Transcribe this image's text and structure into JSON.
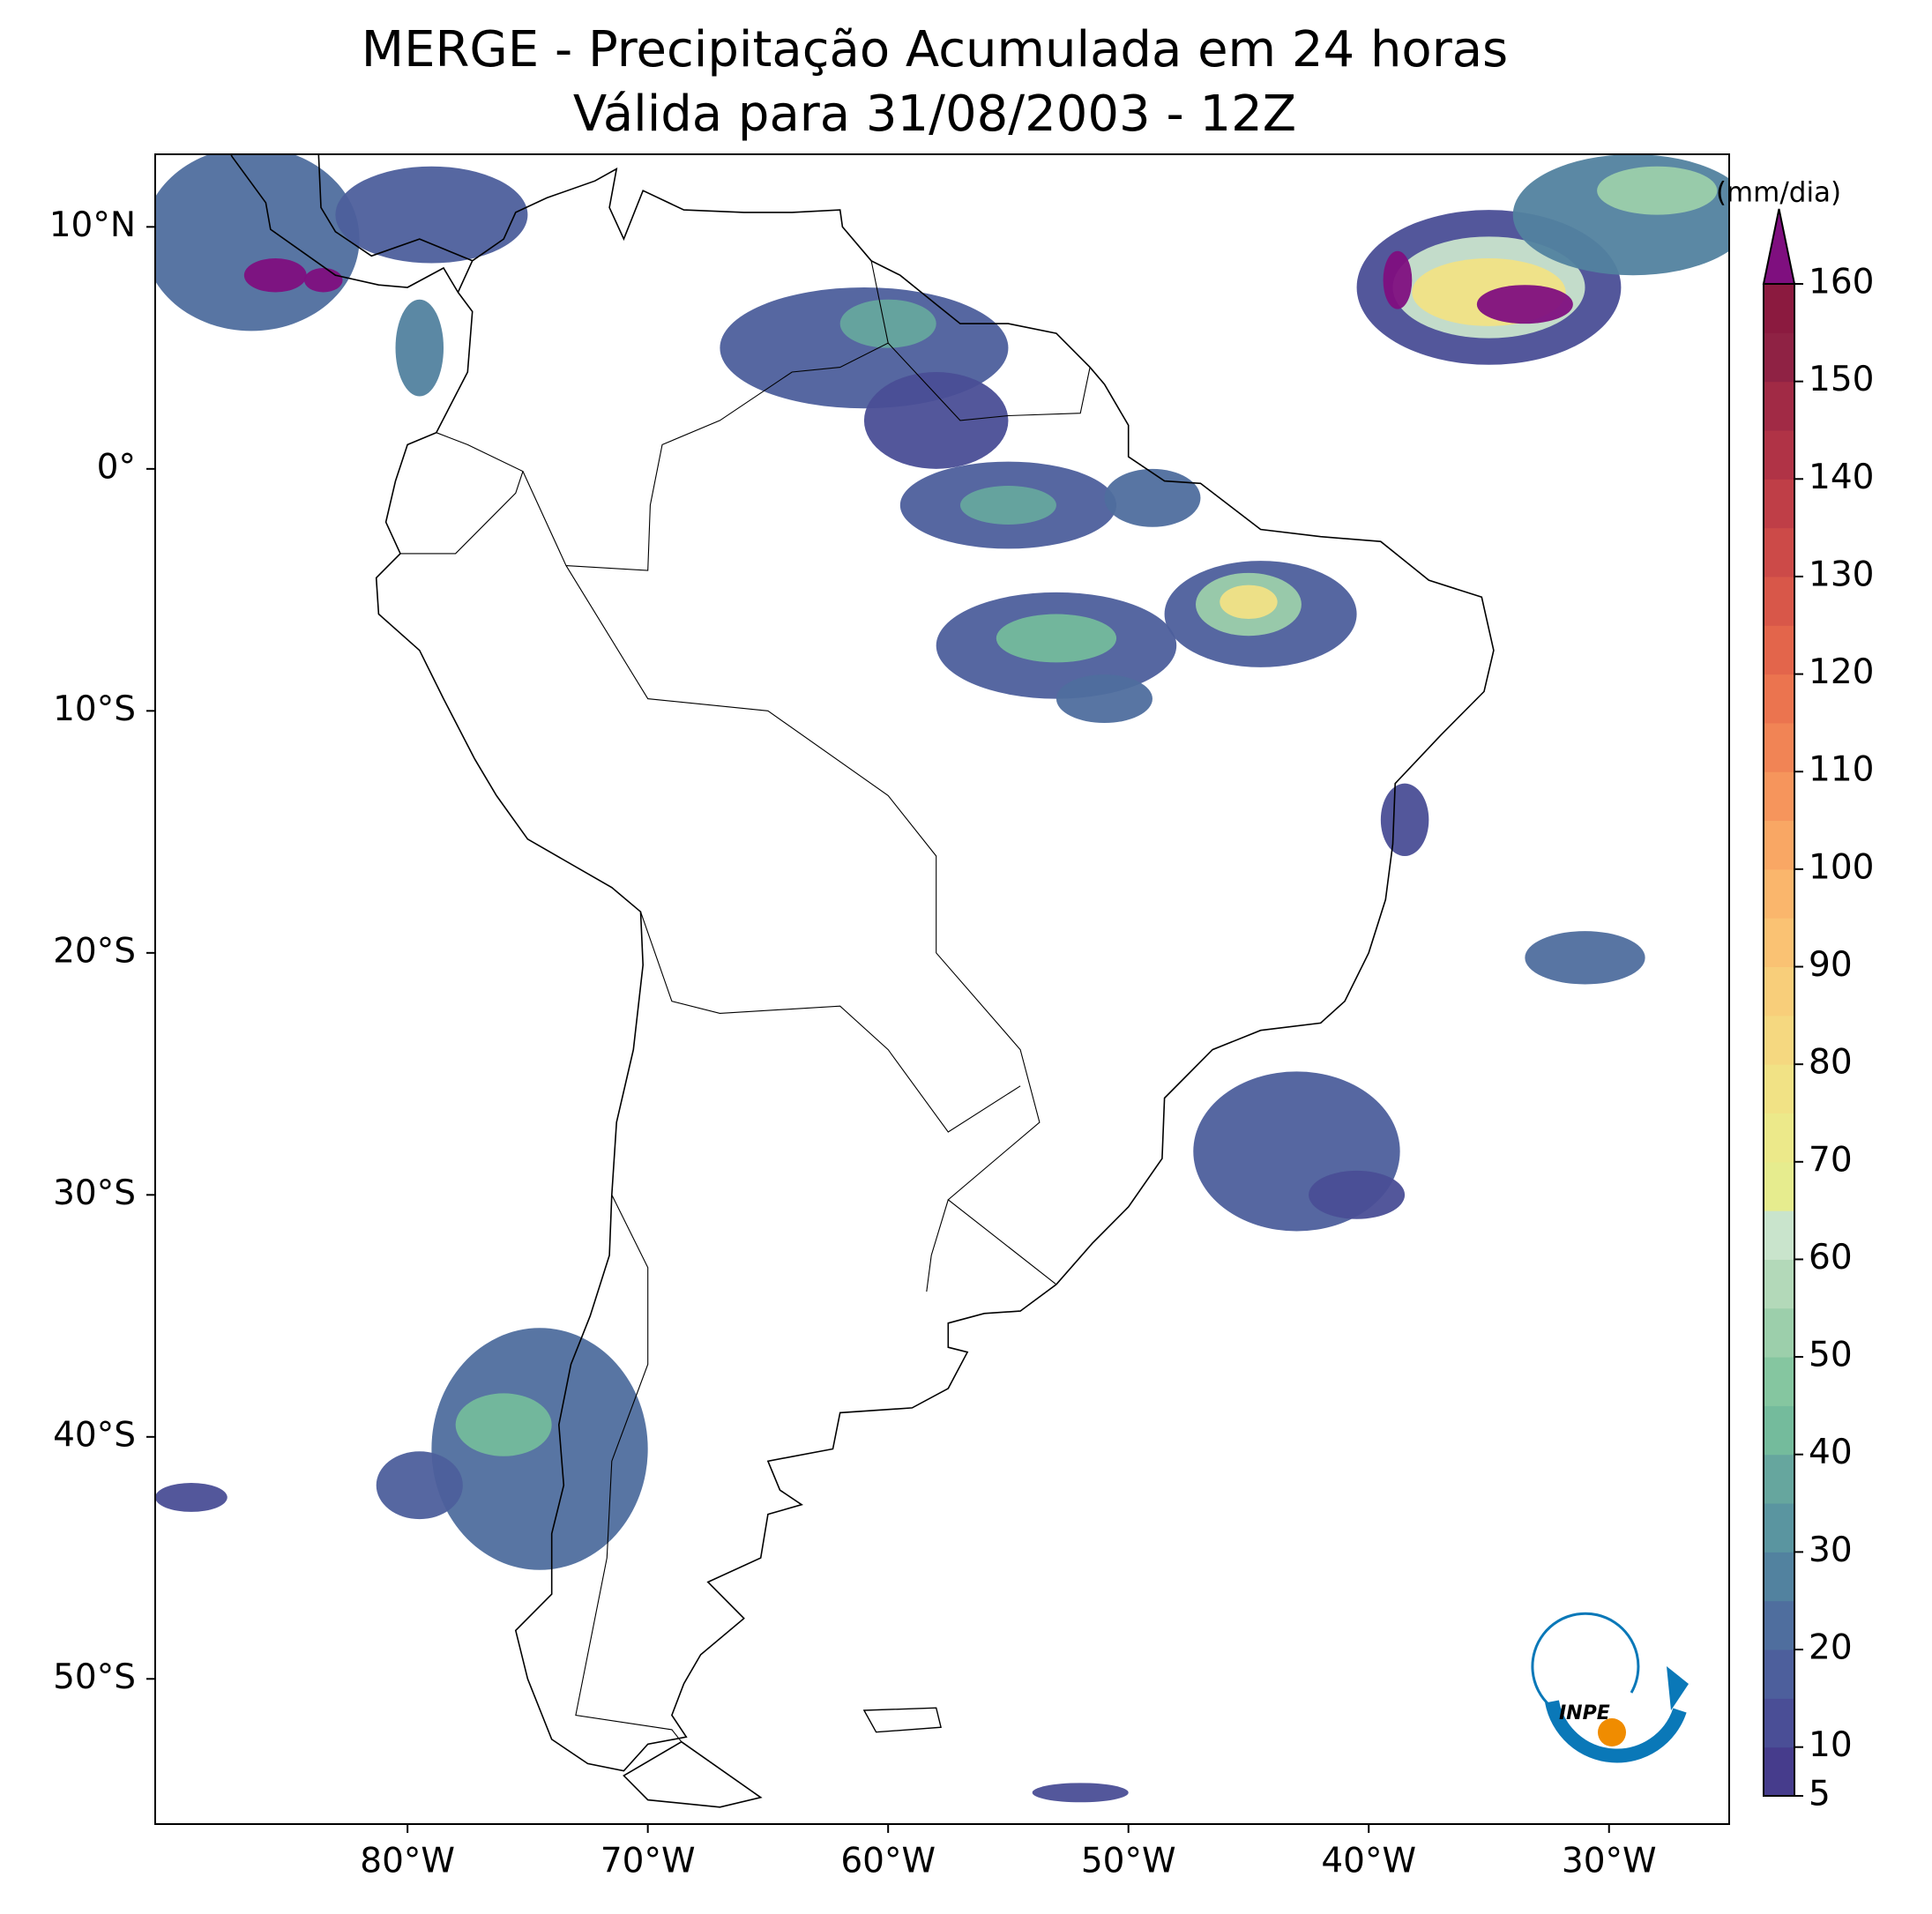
{
  "chart_data": {
    "type": "map",
    "title": "MERGE - Precipitação Acumulada em 24 horas",
    "subtitle": "Válida para 31/08/2003 - 12Z",
    "xlim": [
      -90.5,
      -25
    ],
    "ylim": [
      -56,
      13
    ],
    "xticks": [
      {
        "value": -80,
        "label": "80°W"
      },
      {
        "value": -70,
        "label": "70°W"
      },
      {
        "value": -60,
        "label": "60°W"
      },
      {
        "value": -50,
        "label": "50°W"
      },
      {
        "value": -40,
        "label": "40°W"
      },
      {
        "value": -30,
        "label": "30°W"
      }
    ],
    "yticks": [
      {
        "value": 10,
        "label": "10°N"
      },
      {
        "value": 0,
        "label": "0°"
      },
      {
        "value": -10,
        "label": "10°S"
      },
      {
        "value": -20,
        "label": "20°S"
      },
      {
        "value": -30,
        "label": "30°S"
      },
      {
        "value": -40,
        "label": "40°S"
      },
      {
        "value": -50,
        "label": "50°S"
      }
    ],
    "colorbar": {
      "label": "(mm/dia)",
      "lim": [
        5,
        160
      ],
      "ticks": [
        5,
        10,
        20,
        30,
        40,
        50,
        60,
        70,
        80,
        90,
        100,
        110,
        120,
        130,
        140,
        150,
        160
      ],
      "colors": [
        "#463c8c",
        "#4a4e96",
        "#4d5f9c",
        "#4f6e9e",
        "#52829f",
        "#5a95a0",
        "#66a69e",
        "#74bb9c",
        "#85c6a0",
        "#9ccfab",
        "#b3d9b9",
        "#c9e4cc",
        "#e6ec8e",
        "#ece98a",
        "#f1e285",
        "#f5d880",
        "#f8ce7a",
        "#fac273",
        "#fab66c",
        "#f9a764",
        "#f6955c",
        "#f18455",
        "#eb744f",
        "#e3654b",
        "#d85749",
        "#cc4a48",
        "#bf3e47",
        "#b03346",
        "#a12a45",
        "#8f2244",
        "#8b1a3f"
      ],
      "extend_color": "#7f0f7f"
    },
    "logo_text": "INPE"
  }
}
